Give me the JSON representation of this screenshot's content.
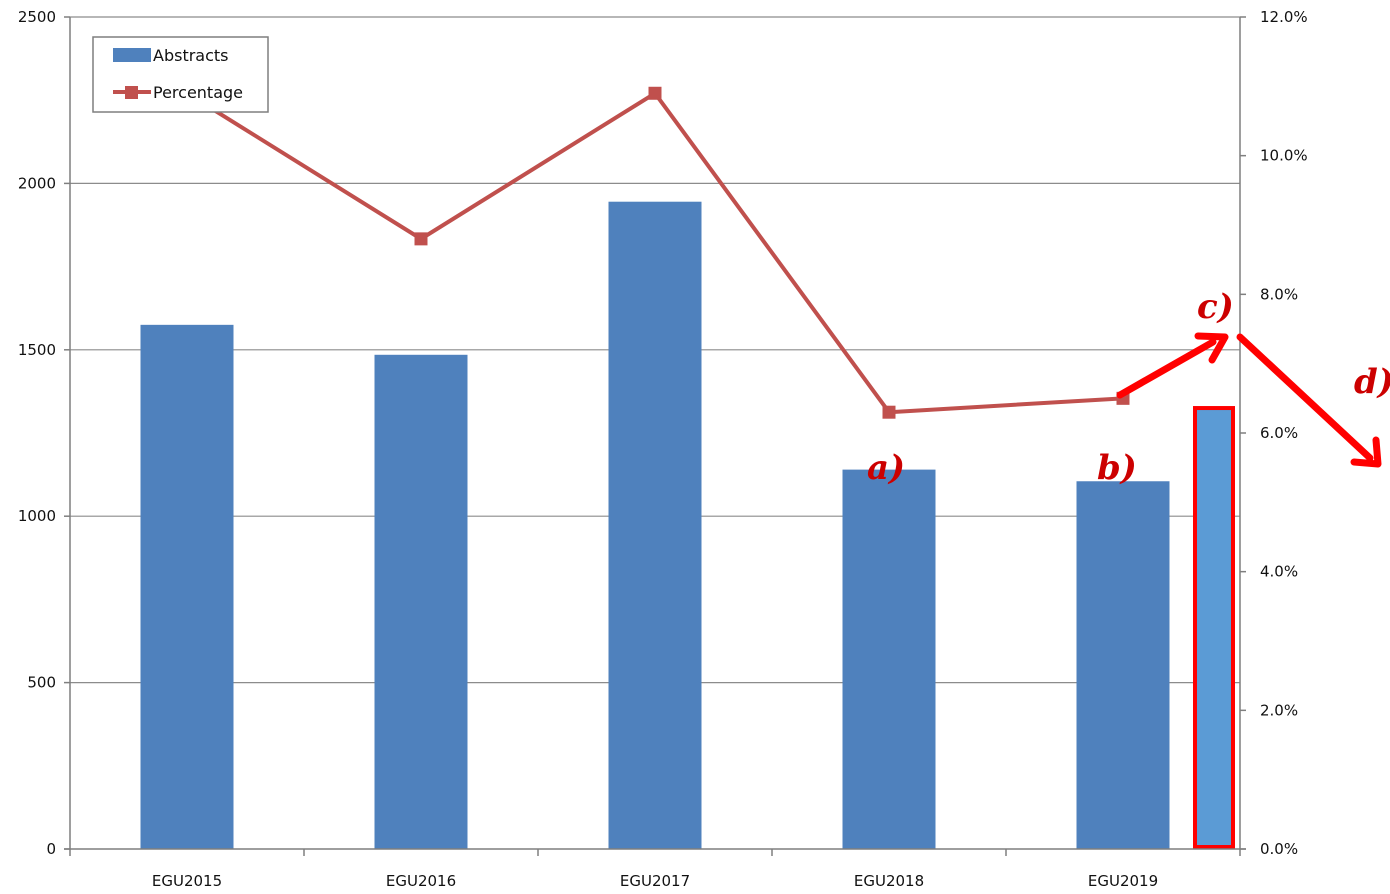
{
  "chart_data": {
    "type": "bar",
    "categories": [
      "EGU2015",
      "EGU2016",
      "EGU2017",
      "EGU2018",
      "EGU2019"
    ],
    "series": [
      {
        "name": "Abstracts",
        "type": "bar",
        "axis": "left",
        "color": "#4f81bd",
        "values": [
          1575,
          1485,
          1945,
          1140,
          1105
        ]
      },
      {
        "name": "Percentage",
        "type": "line",
        "axis": "right",
        "color": "#c0504d",
        "values": [
          10.9,
          8.8,
          10.9,
          6.3,
          6.5
        ]
      }
    ],
    "left_axis": {
      "min": 0,
      "max": 2500,
      "ticks": [
        0,
        500,
        1000,
        1500,
        2000,
        2500
      ],
      "tick_labels": [
        "0",
        "500",
        "1000",
        "1500",
        "2000",
        "2500"
      ]
    },
    "right_axis": {
      "min": 0,
      "max": 12,
      "ticks": [
        0,
        2,
        4,
        6,
        8,
        10,
        12
      ],
      "tick_labels": [
        "0.0%",
        "2.0%",
        "4.0%",
        "6.0%",
        "8.0%",
        "10.0%",
        "12.0%"
      ]
    },
    "gridlines": "horizontal",
    "legend_position": "top-left",
    "annotations": {
      "extra_bar": {
        "value": 1325,
        "fill_color": "#5b9bd5",
        "outline_color": "#ff0000"
      },
      "labels": [
        {
          "key": "a",
          "text": "a)",
          "color": "#cc0000"
        },
        {
          "key": "b",
          "text": "b)",
          "color": "#cc0000"
        },
        {
          "key": "c",
          "text": "c)",
          "color": "#cc0000"
        },
        {
          "key": "d",
          "text": "d)",
          "color": "#cc0000"
        }
      ],
      "arrow_color": "#ff0000"
    }
  }
}
